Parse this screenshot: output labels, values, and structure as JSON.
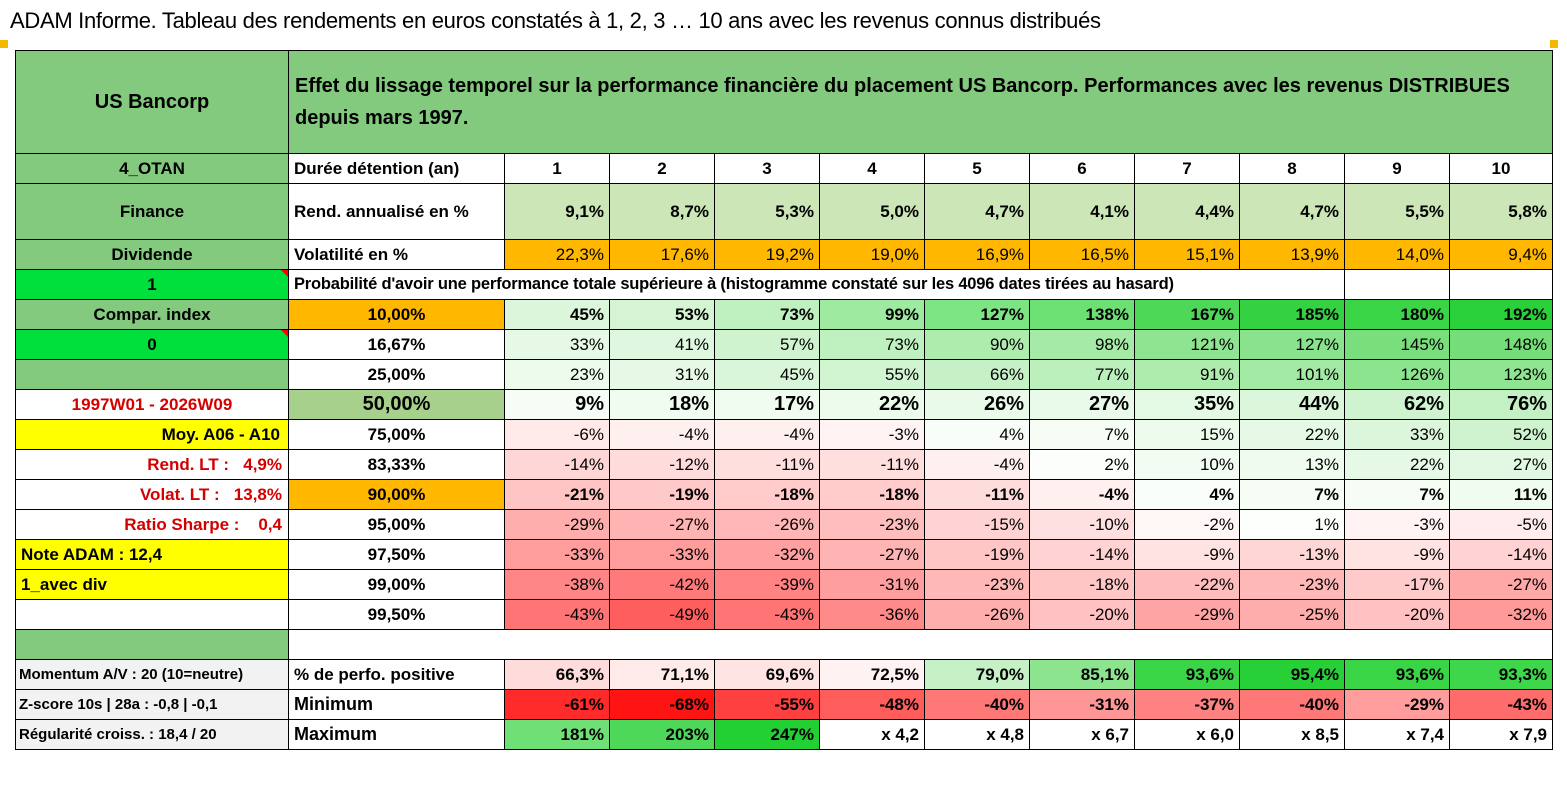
{
  "page_title": "ADAM Informe. Tableau des rendements en euros constatés à 1, 2, 3 … 10 ans avec les revenus connus distribués",
  "instrument": {
    "name": "US Bancorp",
    "description": "Effet du lissage temporel sur la performance financière du placement US Bancorp. Performances avec les revenus DISTRIBUES depuis mars 1997."
  },
  "side_labels": {
    "otan": "4_OTAN",
    "sector": "Finance",
    "type": "Dividende",
    "flag1": "1",
    "compar_index": "Compar. index",
    "flag0": "0",
    "blank": "",
    "period": "1997W01 - 2026W09",
    "moy": "Moy. A06 - A10",
    "rend_lt_label": "Rend. LT :",
    "rend_lt_value": "4,9%",
    "volat_lt_label": "Volat. LT :",
    "volat_lt_value": "13,8%",
    "sharpe_label": "Ratio Sharpe :",
    "sharpe_value": "0,4",
    "note_adam": "Note ADAM : 12,4",
    "avec_div": "1_avec div",
    "momentum": "Momentum A/V : 20 (10=neutre)",
    "zscore": "Z-score 10s | 28a : -0,8 | -0,1",
    "regularite": "Régularité croiss. : 18,4 / 20"
  },
  "row_labels": {
    "duree": "Durée détention (an)",
    "rend": "Rend. annualisé en %",
    "volat": "Volatilité en %",
    "proba": "Probabilité d'avoir une performance totale supérieure à (histogramme constaté sur les 4096 dates tirées au hasard)",
    "perfo_pos": "% de perfo. positive",
    "minimum": "Minimum",
    "maximum": "Maximum"
  },
  "years": [
    "1",
    "2",
    "3",
    "4",
    "5",
    "6",
    "7",
    "8",
    "9",
    "10"
  ],
  "rend": [
    "9,1%",
    "8,7%",
    "5,3%",
    "5,0%",
    "4,7%",
    "4,1%",
    "4,4%",
    "4,7%",
    "5,5%",
    "5,8%"
  ],
  "volat": [
    "22,3%",
    "17,6%",
    "19,2%",
    "19,0%",
    "16,9%",
    "16,5%",
    "15,1%",
    "13,9%",
    "14,0%",
    "9,4%"
  ],
  "percentiles": [
    {
      "p": "10,00%",
      "values": [
        "45%",
        "53%",
        "73%",
        "99%",
        "127%",
        "138%",
        "167%",
        "185%",
        "180%",
        "192%"
      ]
    },
    {
      "p": "16,67%",
      "values": [
        "33%",
        "41%",
        "57%",
        "73%",
        "90%",
        "98%",
        "121%",
        "127%",
        "145%",
        "148%"
      ]
    },
    {
      "p": "25,00%",
      "values": [
        "23%",
        "31%",
        "45%",
        "55%",
        "66%",
        "77%",
        "91%",
        "101%",
        "126%",
        "123%"
      ]
    },
    {
      "p": "50,00%",
      "values": [
        "9%",
        "18%",
        "17%",
        "22%",
        "26%",
        "27%",
        "35%",
        "44%",
        "62%",
        "76%"
      ]
    },
    {
      "p": "75,00%",
      "values": [
        "-6%",
        "-4%",
        "-4%",
        "-3%",
        "4%",
        "7%",
        "15%",
        "22%",
        "33%",
        "52%"
      ]
    },
    {
      "p": "83,33%",
      "values": [
        "-14%",
        "-12%",
        "-11%",
        "-11%",
        "-4%",
        "2%",
        "10%",
        "13%",
        "22%",
        "27%"
      ]
    },
    {
      "p": "90,00%",
      "values": [
        "-21%",
        "-19%",
        "-18%",
        "-18%",
        "-11%",
        "-4%",
        "4%",
        "7%",
        "7%",
        "11%"
      ]
    },
    {
      "p": "95,00%",
      "values": [
        "-29%",
        "-27%",
        "-26%",
        "-23%",
        "-15%",
        "-10%",
        "-2%",
        "1%",
        "-3%",
        "-5%"
      ]
    },
    {
      "p": "97,50%",
      "values": [
        "-33%",
        "-33%",
        "-32%",
        "-27%",
        "-19%",
        "-14%",
        "-9%",
        "-13%",
        "-9%",
        "-14%"
      ]
    },
    {
      "p": "99,00%",
      "values": [
        "-38%",
        "-42%",
        "-39%",
        "-31%",
        "-23%",
        "-18%",
        "-22%",
        "-23%",
        "-17%",
        "-27%"
      ]
    },
    {
      "p": "99,50%",
      "values": [
        "-43%",
        "-49%",
        "-43%",
        "-36%",
        "-26%",
        "-20%",
        "-29%",
        "-25%",
        "-20%",
        "-32%"
      ]
    }
  ],
  "perfo_pos": [
    "66,3%",
    "71,1%",
    "69,6%",
    "72,5%",
    "79,0%",
    "85,1%",
    "93,6%",
    "95,4%",
    "93,6%",
    "93,3%"
  ],
  "minimum": [
    "-61%",
    "-68%",
    "-55%",
    "-48%",
    "-40%",
    "-31%",
    "-37%",
    "-40%",
    "-29%",
    "-43%"
  ],
  "maximum": [
    "181%",
    "203%",
    "247%",
    "x 4,2",
    "x 4,8",
    "x 6,7",
    "x 6,0",
    "x 8,5",
    "x 7,4",
    "x 7,9"
  ],
  "colors": {
    "header_green": "#83c97e",
    "bright_green": "#00e03c",
    "yellow": "#ffff00",
    "orange": "#ffb700",
    "positive_green": "#10d040",
    "negative_red": "#ff2020"
  }
}
